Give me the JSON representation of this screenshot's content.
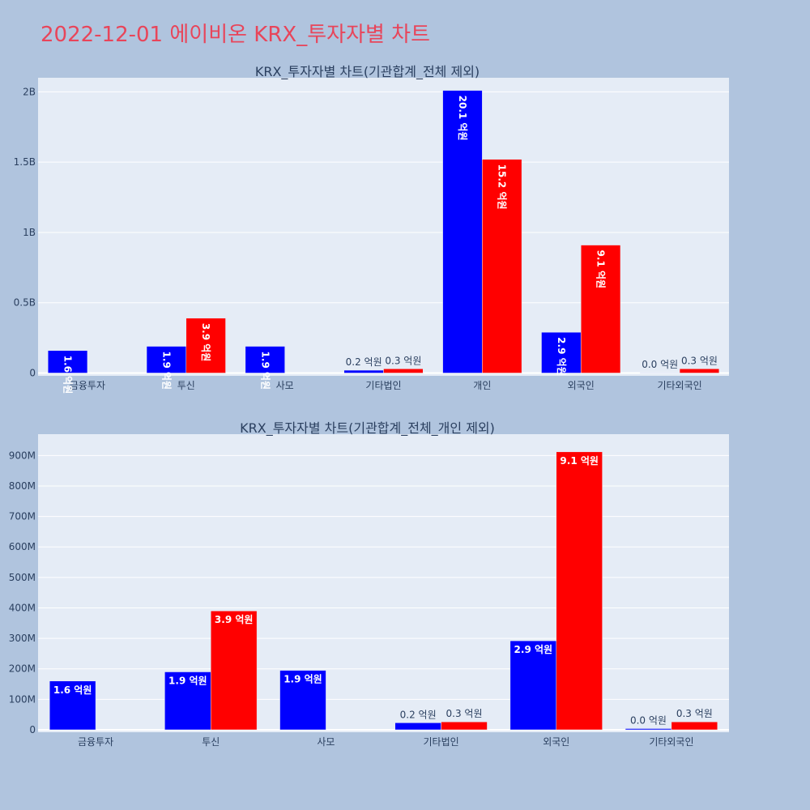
{
  "page": {
    "title": "2022-12-01 에이비온 KRX_투자자별 차트"
  },
  "colors": {
    "buy": "#0000ff",
    "sell": "#ff0000",
    "plot_bg": "#e5ecf6",
    "page_bg": "#b0c4de",
    "title": "#e8455a"
  },
  "chart_data": [
    {
      "type": "bar",
      "title": "KRX_투자자별 차트(기관합계_전체 제외)",
      "categories": [
        "금융투자",
        "투신",
        "사모",
        "기타법인",
        "개인",
        "외국인",
        "기타외국인"
      ],
      "series": [
        {
          "values": [
            160000000,
            190000000,
            190000000,
            20000000,
            2010000000,
            290000000,
            3000000
          ],
          "labels": [
            "1.6 억원",
            "1.9 억원",
            "1.9 억원",
            "0.2 억원",
            "20.1 억원",
            "2.9 억원",
            "0.0 억원"
          ]
        },
        {
          "values": [
            0,
            390000000,
            0,
            30000000,
            1520000000,
            910000000,
            30000000
          ],
          "labels": [
            "",
            "3.9 억원",
            "",
            "0.3 억원",
            "15.2 억원",
            "9.1 억원",
            "0.3 억원"
          ]
        }
      ],
      "ylim": [
        -20000000,
        2100000000
      ],
      "yticks": [
        0,
        500000000,
        1000000000,
        1500000000,
        2000000000
      ],
      "yticklabels": [
        "0",
        "0.5B",
        "1B",
        "1.5B",
        "2B"
      ],
      "grid": true,
      "rotate_tall_labels": true
    },
    {
      "type": "bar",
      "title": "KRX_투자자별 차트(기관합계_전체_개인 제외)",
      "categories": [
        "금융투자",
        "투신",
        "사모",
        "기타법인",
        "외국인",
        "기타외국인"
      ],
      "series": [
        {
          "values": [
            160000000,
            190000000,
            195000000,
            23000000,
            292000000,
            4000000
          ],
          "labels": [
            "1.6 억원",
            "1.9 억원",
            "1.9 억원",
            "0.2 억원",
            "2.9 억원",
            "0.0 억원"
          ]
        },
        {
          "values": [
            0,
            390000000,
            0,
            26000000,
            912000000,
            26000000
          ],
          "labels": [
            "",
            "3.9 억원",
            "",
            "0.3 억원",
            "9.1 억원",
            "0.3 억원"
          ]
        }
      ],
      "ylim": [
        -8000000,
        970000000
      ],
      "yticks": [
        0,
        100000000,
        200000000,
        300000000,
        400000000,
        500000000,
        600000000,
        700000000,
        800000000,
        900000000
      ],
      "yticklabels": [
        "0",
        "100M",
        "200M",
        "300M",
        "400M",
        "500M",
        "600M",
        "700M",
        "800M",
        "900M"
      ],
      "grid": true,
      "rotate_tall_labels": false
    }
  ]
}
